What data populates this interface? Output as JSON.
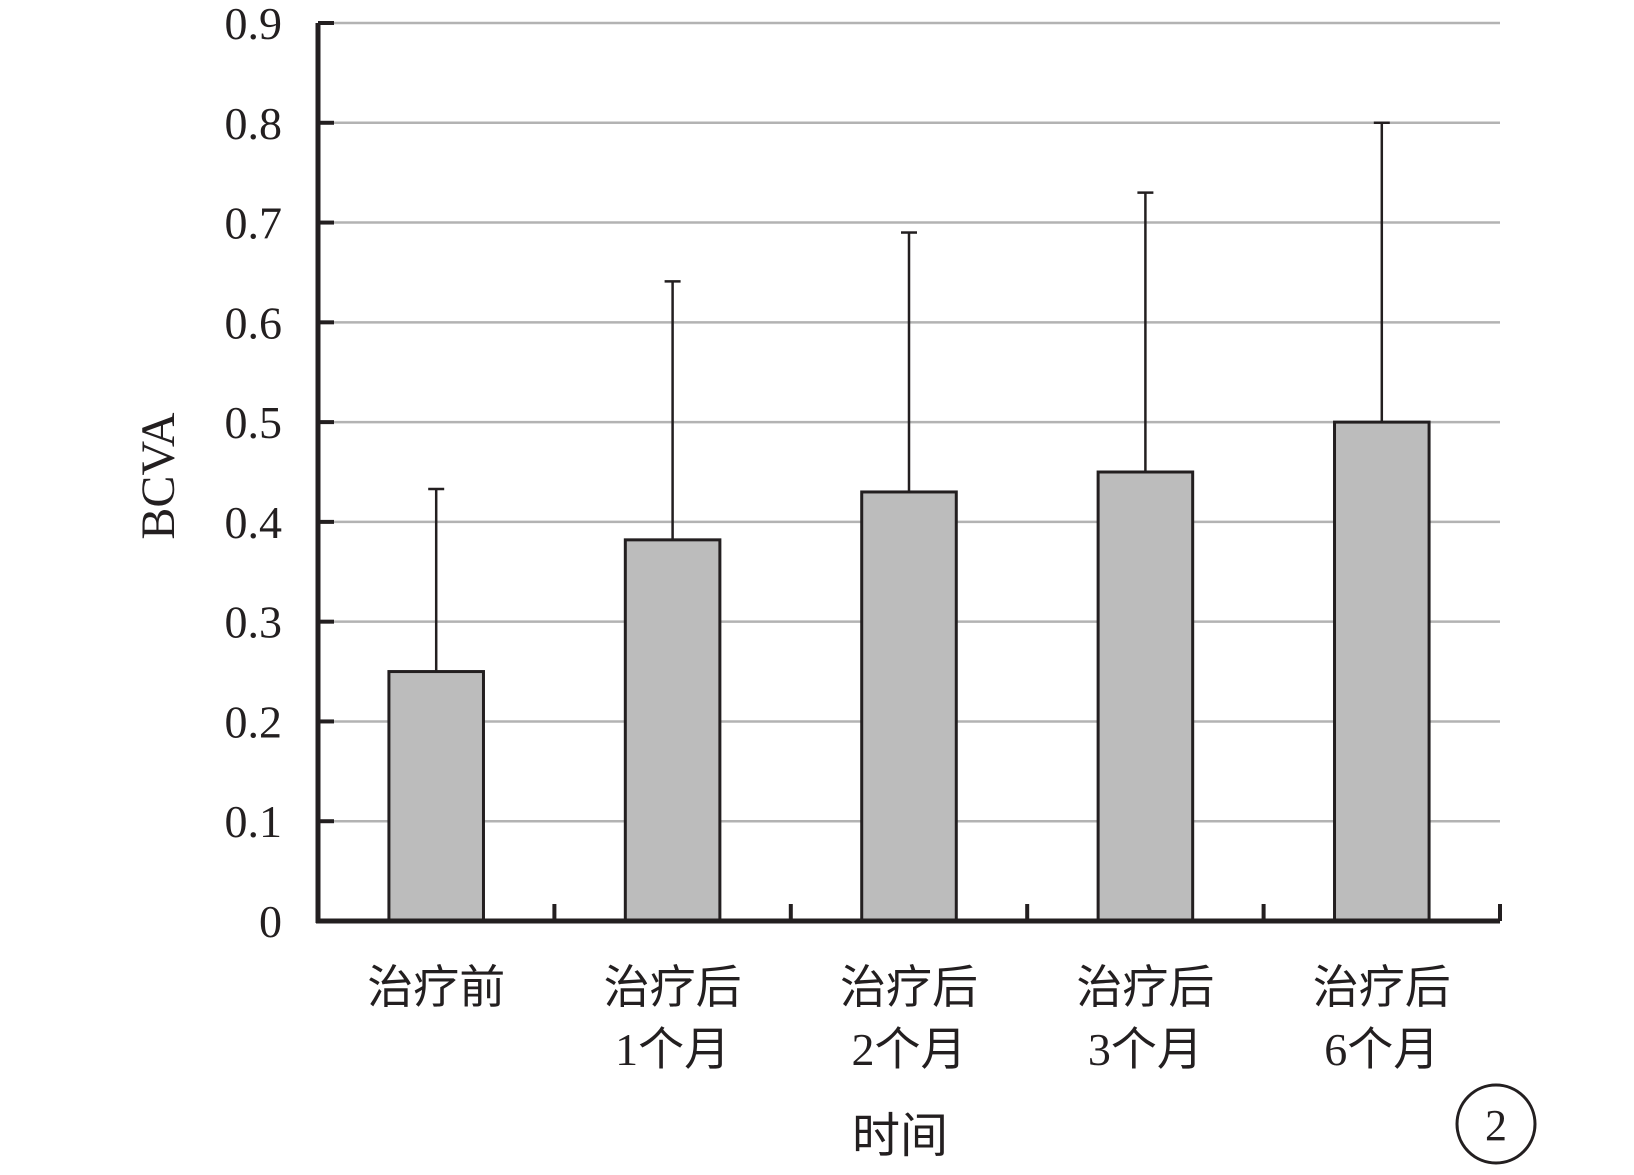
{
  "chart_data": {
    "type": "bar",
    "categories": [
      [
        "治疗前"
      ],
      [
        "治疗后",
        "1个月"
      ],
      [
        "治疗后",
        "2个月"
      ],
      [
        "治疗后",
        "3个月"
      ],
      [
        "治疗后",
        "6个月"
      ]
    ],
    "values": [
      0.25,
      0.382,
      0.43,
      0.45,
      0.5
    ],
    "error_upper": [
      0.433,
      0.641,
      0.69,
      0.73,
      0.8
    ],
    "ylabel": "BCVA",
    "xlabel": "时间",
    "ylim": [
      0,
      0.9
    ],
    "yticks": [
      "0",
      "0.1",
      "0.2",
      "0.3",
      "0.4",
      "0.5",
      "0.6",
      "0.7",
      "0.8",
      "0.9"
    ],
    "grid": true,
    "panel_label": "2",
    "colors": {
      "bar": "#bcbcbc",
      "bar_edge": "#231f20",
      "grid": "#b3b3b3",
      "axis": "#231f20"
    }
  }
}
